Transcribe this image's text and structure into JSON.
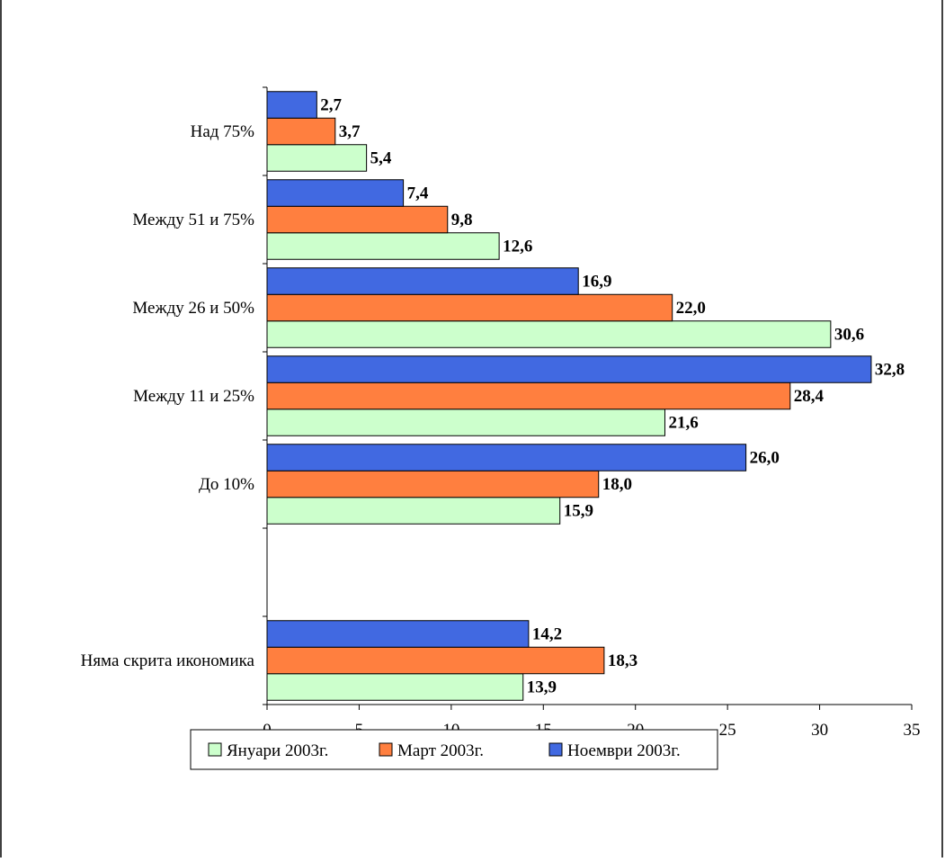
{
  "chart_data": {
    "type": "bar",
    "orientation": "horizontal",
    "categories": [
      "Няма скрита икономика",
      "",
      "До 10%",
      "Между 11 и 25%",
      "Между 26 и 50%",
      "Между 51 и 75%",
      "Над 75%"
    ],
    "series": [
      {
        "name": "Януари 2003г.",
        "color": "#ccffcc",
        "values": [
          13.9,
          null,
          15.9,
          21.6,
          30.6,
          12.6,
          5.4
        ],
        "labels": [
          "13,9",
          "",
          "15,9",
          "21,6",
          "30,6",
          "12,6",
          "5,4"
        ]
      },
      {
        "name": "Март 2003г.",
        "color": "#ff7f3f",
        "values": [
          18.3,
          null,
          18.0,
          28.4,
          22.0,
          9.8,
          3.7
        ],
        "labels": [
          "18,3",
          "",
          "18,0",
          "28,4",
          "22,0",
          "9,8",
          "3,7"
        ]
      },
      {
        "name": "Ноември 2003г.",
        "color": "#4169e1",
        "values": [
          14.2,
          null,
          26.0,
          32.8,
          16.9,
          7.4,
          2.7
        ],
        "labels": [
          "14,2",
          "",
          "26,0",
          "32,8",
          "16,9",
          "7,4",
          "2,7"
        ]
      }
    ],
    "xlim": [
      0,
      35
    ],
    "xticks": [
      "0",
      "5",
      "10",
      "15",
      "20",
      "25",
      "30",
      "35"
    ],
    "title": "",
    "xlabel": "",
    "ylabel": "",
    "grid": false,
    "legend": "bottom"
  }
}
